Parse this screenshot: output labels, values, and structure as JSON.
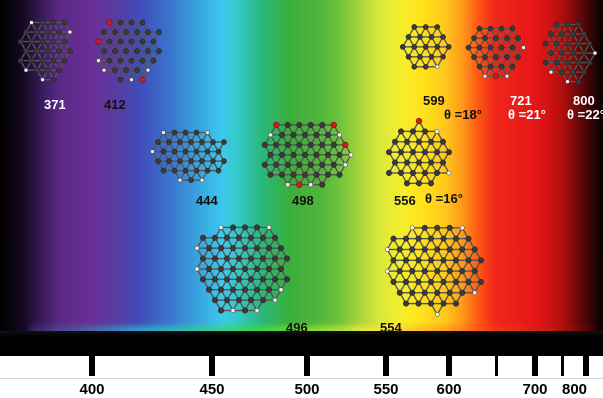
{
  "spectrum": {
    "axis_ticks": [
      "400",
      "450",
      "500",
      "550",
      "600",
      "700",
      "800"
    ],
    "molecules": [
      {
        "id": "m371",
        "wavelength": "371",
        "angle": ""
      },
      {
        "id": "m412",
        "wavelength": "412",
        "angle": ""
      },
      {
        "id": "m444",
        "wavelength": "444",
        "angle": ""
      },
      {
        "id": "m498",
        "wavelength": "498",
        "angle": ""
      },
      {
        "id": "m496",
        "wavelength": "496",
        "angle": ""
      },
      {
        "id": "m554",
        "wavelength": "554",
        "angle": ""
      },
      {
        "id": "m556",
        "wavelength": "556",
        "angle": "θ =16°"
      },
      {
        "id": "m599",
        "wavelength": "599",
        "angle": "θ =18°"
      },
      {
        "id": "m721",
        "wavelength": "721",
        "angle": "θ =21°"
      },
      {
        "id": "m800",
        "wavelength": "800",
        "angle": "θ =22°"
      }
    ]
  },
  "colors": {
    "carbon": "#3a3a3a",
    "hydrogen": "#f4f4f4",
    "oxygen": "#d81818"
  }
}
